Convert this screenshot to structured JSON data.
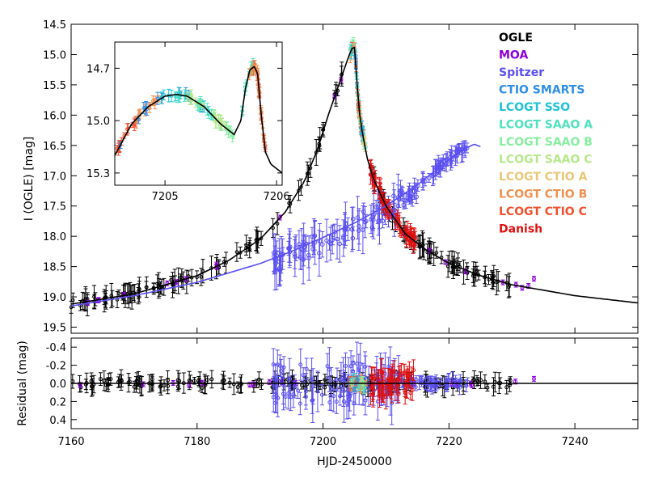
{
  "chart_data": [
    {
      "panel": "main",
      "type": "scatter",
      "xlabel": "HJD-2450000",
      "ylabel": "I (OGLE) [mag]",
      "xlim": [
        7160,
        7250
      ],
      "ylim": [
        19.6,
        14.5
      ],
      "xticks": [
        7160,
        7180,
        7200,
        7220,
        7240
      ],
      "yticks": [
        14.5,
        15.0,
        15.5,
        16.0,
        16.5,
        17.0,
        17.5,
        18.0,
        18.5,
        19.0,
        19.5
      ],
      "ytick_labels": [
        "14.5",
        "15.0",
        "15.5",
        "16.0",
        "16.5",
        "17.0",
        "17.5",
        "18.0",
        "18.5",
        "19.0",
        "19.5"
      ],
      "legend": {
        "placement": "top-right",
        "entries": [
          {
            "label": "OGLE",
            "color": "#000000"
          },
          {
            "label": "MOA",
            "color": "#8b00d9"
          },
          {
            "label": "Spitzer",
            "color": "#5a4ff0"
          },
          {
            "label": "CTIO SMARTS",
            "color": "#2f8ee8"
          },
          {
            "label": "LCOGT SSO",
            "color": "#1fc2d6"
          },
          {
            "label": "LCOGT SAAO A",
            "color": "#4fe0c0"
          },
          {
            "label": "LCOGT SAAO B",
            "color": "#86eea0"
          },
          {
            "label": "LCOGT SAAO C",
            "color": "#b6e88a"
          },
          {
            "label": "LCOGT CTIO A",
            "color": "#e8c878"
          },
          {
            "label": "LCOGT CTIO B",
            "color": "#f09050"
          },
          {
            "label": "LCOGT CTIO C",
            "color": "#f05030"
          },
          {
            "label": "Danish",
            "color": "#e01010"
          }
        ]
      },
      "model_ground": {
        "color": "#000000",
        "x": [
          7160,
          7170,
          7180,
          7185,
          7190,
          7194,
          7197,
          7199,
          7201,
          7202.5,
          7203.5,
          7204.2,
          7204.8,
          7205.1,
          7205.3,
          7205.6,
          7206,
          7207,
          7208,
          7210,
          7213,
          7216,
          7220,
          7225,
          7230,
          7240,
          7250
        ],
        "y": [
          19.12,
          18.95,
          18.65,
          18.4,
          18.05,
          17.6,
          17.1,
          16.6,
          15.95,
          15.5,
          15.2,
          15.0,
          14.85,
          14.9,
          15.3,
          15.8,
          16.15,
          16.7,
          17.05,
          17.5,
          17.95,
          18.2,
          18.45,
          18.65,
          18.8,
          18.98,
          19.1
        ]
      },
      "model_spitzer": {
        "color": "#5a4ff0",
        "x": [
          7160,
          7170,
          7180,
          7190,
          7195,
          7200,
          7205,
          7210,
          7215,
          7219,
          7222,
          7224,
          7225
        ],
        "y": [
          19.15,
          18.98,
          18.76,
          18.45,
          18.25,
          18.02,
          17.78,
          17.5,
          17.15,
          16.82,
          16.58,
          16.48,
          16.52
        ]
      }
    },
    {
      "panel": "inset",
      "type": "scatter",
      "xlim": [
        7204.55,
        7206.05
      ],
      "ylim": [
        15.37,
        14.55
      ],
      "xticks": [
        7205,
        7206
      ],
      "xtick_labels": [
        "7205",
        "7206"
      ],
      "yticks": [
        14.7,
        15.0,
        15.3
      ],
      "ytick_labels": [
        "14.7",
        "15.0",
        "15.3"
      ],
      "model": {
        "x": [
          7204.55,
          7204.7,
          7204.85,
          7205.0,
          7205.1,
          7205.2,
          7205.35,
          7205.5,
          7205.62,
          7205.68,
          7205.72,
          7205.76,
          7205.8,
          7205.83,
          7205.86,
          7205.9,
          7205.95,
          7206.05
        ],
        "y": [
          15.2,
          15.02,
          14.92,
          14.86,
          14.85,
          14.86,
          14.92,
          15.02,
          15.08,
          15.0,
          14.82,
          14.71,
          14.69,
          14.73,
          14.95,
          15.18,
          15.25,
          15.3
        ]
      }
    },
    {
      "panel": "residual",
      "type": "scatter",
      "xlabel": "HJD-2450000",
      "ylabel": "Residual (mag)",
      "xlim": [
        7160,
        7250
      ],
      "ylim": [
        0.5,
        -0.5
      ],
      "xticks": [
        7160,
        7180,
        7200,
        7220,
        7240
      ],
      "xtick_labels": [
        "7160",
        "7180",
        "7200",
        "7220",
        "7240"
      ],
      "yticks": [
        -0.4,
        -0.2,
        0.0,
        0.2,
        0.4
      ],
      "ytick_labels": [
        "-0.4",
        "-0.2",
        "0.0",
        "0.2",
        "0.4"
      ],
      "zero_line": 0.0
    }
  ]
}
